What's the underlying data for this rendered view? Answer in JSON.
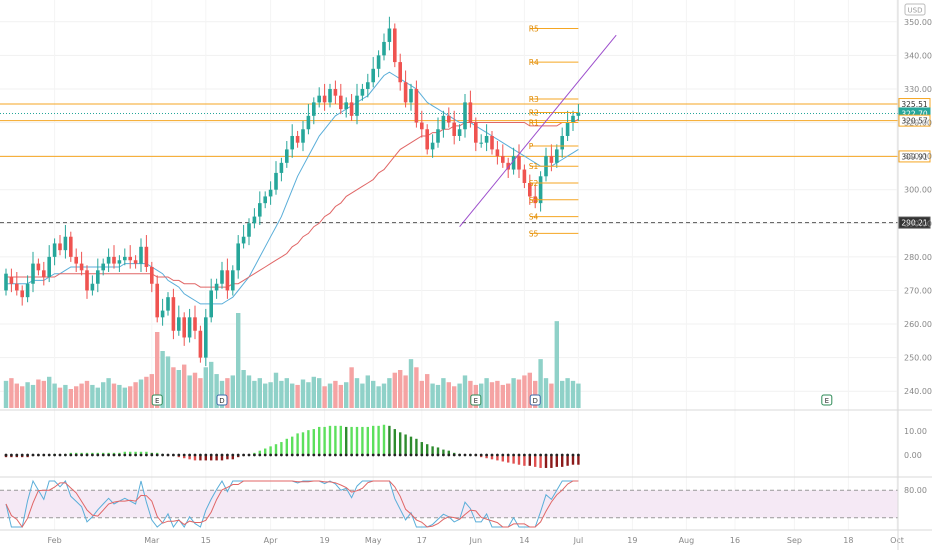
{
  "chart_data": {
    "type": "candlestick",
    "currency": "USD",
    "price_axis": {
      "min": 235,
      "max": 355,
      "ticks": [
        240,
        250,
        260,
        270,
        280,
        290,
        300,
        310,
        320,
        330,
        340,
        350
      ]
    },
    "time_axis": {
      "labels": [
        {
          "label": "Feb",
          "bar": 9
        },
        {
          "label": "Mar",
          "bar": 27
        },
        {
          "label": "15",
          "bar": 37
        },
        {
          "label": "Apr",
          "bar": 49
        },
        {
          "label": "19",
          "bar": 59
        },
        {
          "label": "May",
          "bar": 68
        },
        {
          "label": "17",
          "bar": 77
        },
        {
          "label": "Jun",
          "bar": 87
        },
        {
          "label": "14",
          "bar": 96
        },
        {
          "label": "Jul",
          "bar": 106
        },
        {
          "label": "19",
          "bar": 116
        },
        {
          "label": "Aug",
          "bar": 126
        },
        {
          "label": "16",
          "bar": 135
        },
        {
          "label": "Sep",
          "bar": 146
        },
        {
          "label": "18",
          "bar": 156
        },
        {
          "label": "Oct",
          "bar": 165
        }
      ]
    },
    "close": [
      275,
      272,
      270,
      268,
      272,
      278,
      276,
      274,
      280,
      284,
      282,
      286,
      280,
      278,
      276,
      270,
      272,
      276,
      278,
      280,
      278,
      279,
      280,
      279,
      278,
      283,
      277,
      272,
      262,
      264,
      268,
      258,
      262,
      256,
      262,
      258,
      250,
      262,
      270,
      272,
      276,
      270,
      276,
      284,
      286,
      290,
      292,
      296,
      298,
      300,
      305,
      308,
      312,
      316,
      314,
      318,
      322,
      326,
      328,
      326,
      330,
      328,
      324,
      326,
      322,
      328,
      330,
      332,
      336,
      340,
      344,
      348,
      338,
      332,
      326,
      330,
      320,
      318,
      312,
      314,
      318,
      322,
      320,
      316,
      318,
      326,
      320,
      314,
      314,
      316,
      312,
      310,
      308,
      306,
      310,
      306,
      302,
      298,
      296,
      304,
      310,
      308,
      312,
      316,
      320,
      322,
      323
    ],
    "open": [
      270,
      274,
      272,
      270,
      268,
      272,
      278,
      276,
      274,
      280,
      284,
      282,
      286,
      280,
      278,
      276,
      270,
      272,
      276,
      278,
      280,
      278,
      279,
      280,
      279,
      278,
      283,
      277,
      272,
      262,
      264,
      268,
      258,
      262,
      256,
      262,
      258,
      250,
      262,
      270,
      272,
      276,
      270,
      276,
      284,
      286,
      290,
      292,
      296,
      298,
      300,
      305,
      308,
      312,
      316,
      314,
      318,
      322,
      326,
      328,
      326,
      330,
      328,
      324,
      326,
      322,
      328,
      330,
      332,
      336,
      340,
      344,
      348,
      338,
      332,
      326,
      330,
      320,
      318,
      312,
      314,
      318,
      322,
      320,
      316,
      318,
      326,
      320,
      314,
      314,
      316,
      312,
      310,
      308,
      306,
      310,
      306,
      302,
      298,
      296,
      304,
      310,
      308,
      312,
      316,
      320,
      322
    ],
    "volume": [
      20,
      22,
      18,
      16,
      19,
      17,
      21,
      20,
      23,
      18,
      15,
      17,
      14,
      16,
      18,
      20,
      17,
      15,
      19,
      22,
      18,
      17,
      15,
      16,
      19,
      21,
      23,
      25,
      56,
      42,
      38,
      30,
      28,
      32,
      24,
      26,
      22,
      30,
      34,
      25,
      20,
      22,
      24,
      70,
      28,
      24,
      20,
      22,
      18,
      19,
      26,
      20,
      22,
      18,
      17,
      21,
      19,
      23,
      22,
      16,
      18,
      20,
      17,
      19,
      30,
      22,
      18,
      24,
      20,
      16,
      18,
      22,
      26,
      28,
      24,
      36,
      30,
      20,
      25,
      18,
      17,
      22,
      19,
      16,
      18,
      24,
      20,
      17,
      18,
      22,
      19,
      20,
      17,
      18,
      22,
      21,
      24,
      26,
      20,
      36,
      22,
      18,
      64,
      20,
      22,
      20,
      18
    ],
    "earnings_markers": [
      {
        "label": "E",
        "bar": 28
      },
      {
        "label": "D",
        "bar": 40
      },
      {
        "label": "E",
        "bar": 87
      },
      {
        "label": "D",
        "bar": 98
      },
      {
        "label": "E",
        "bar": 152
      }
    ],
    "moving_averages": [
      {
        "color": "#5aaed9",
        "values": [
          272,
          272,
          272,
          272,
          272,
          273,
          273,
          273,
          274,
          275,
          275,
          276,
          277,
          277,
          277,
          277,
          277,
          277,
          277,
          277,
          277,
          277,
          278,
          278,
          278,
          278,
          278,
          277,
          276,
          275,
          273,
          272,
          271,
          269,
          268,
          267,
          266,
          266,
          266,
          266,
          266,
          267,
          268,
          270,
          272,
          274,
          277,
          280,
          283,
          286,
          289,
          292,
          296,
          300,
          304,
          307,
          310,
          313,
          316,
          318,
          320,
          322,
          323,
          324,
          325,
          326,
          327,
          328,
          330,
          332,
          334,
          335,
          334,
          333,
          332,
          331,
          330,
          328,
          326,
          325,
          324,
          323,
          322,
          321,
          320,
          320,
          320,
          319,
          318,
          317,
          316,
          315,
          314,
          313,
          312,
          311,
          310,
          309,
          308,
          307,
          307,
          307,
          308,
          309,
          310,
          311,
          312
        ]
      },
      {
        "color": "#e06666",
        "values": [
          274,
          274,
          274,
          274,
          274,
          274,
          274,
          274,
          274,
          274,
          275,
          275,
          275,
          275,
          275,
          275,
          275,
          275,
          275,
          275,
          275,
          275,
          275,
          275,
          275,
          275,
          275,
          275,
          274,
          274,
          274,
          273,
          273,
          272,
          272,
          272,
          271,
          271,
          271,
          271,
          271,
          271,
          272,
          272,
          273,
          274,
          275,
          276,
          277,
          278,
          279,
          280,
          281,
          283,
          284,
          286,
          287,
          289,
          290,
          292,
          293,
          295,
          296,
          298,
          299,
          300,
          301,
          302,
          303,
          305,
          306,
          308,
          310,
          312,
          313,
          314,
          315,
          316,
          316,
          317,
          317,
          318,
          318,
          319,
          319,
          320,
          320,
          320,
          320,
          320,
          320,
          320,
          320,
          320,
          320,
          320,
          320,
          319,
          319,
          319,
          319,
          319,
          319,
          320,
          320,
          320,
          321
        ]
      }
    ],
    "horizontal_levels": [
      {
        "value": 325.51,
        "label": "325.51",
        "color": "#f5a623",
        "style": "solid"
      },
      {
        "value": 322.7,
        "label": "322.70",
        "color": "#26a69a",
        "style": "dotted"
      },
      {
        "value": 320.57,
        "label": "320.57",
        "color": "#f5a623",
        "style": "solid"
      },
      {
        "value": 309.91,
        "label": "309.91",
        "color": "#f5a623",
        "style": "solid"
      },
      {
        "value": 290.21,
        "label": "290.21",
        "color": "#555555",
        "style": "dashed"
      }
    ],
    "pivot_levels": [
      {
        "label": "R5",
        "value": 348
      },
      {
        "label": "R4",
        "value": 338
      },
      {
        "label": "R3",
        "value": 327
      },
      {
        "label": "R2",
        "value": 323
      },
      {
        "label": "R1",
        "value": 320
      },
      {
        "label": "P",
        "value": 313
      },
      {
        "label": "S1",
        "value": 307
      },
      {
        "label": "S2",
        "value": 302
      },
      {
        "label": "S3",
        "value": 297
      },
      {
        "label": "S4",
        "value": 292
      },
      {
        "label": "S5",
        "value": 287
      }
    ],
    "trendline": {
      "from": {
        "bar": 84,
        "value": 289
      },
      "to": {
        "bar": 113,
        "value": 346
      },
      "color": "#9c4dcc"
    },
    "momentum_axis": {
      "ticks": [
        10.0,
        0.0
      ],
      "labels": [
        "10.00",
        "0.00"
      ]
    },
    "stochastic_axis": {
      "ticks": [
        80.0
      ],
      "labels": [
        "80.00"
      ],
      "upper": 80,
      "lower": 20
    },
    "colors": {
      "up": "#26a69a",
      "down": "#ef5350",
      "volume_up": "#8fd1c8",
      "volume_down": "#f5a3a3"
    }
  }
}
